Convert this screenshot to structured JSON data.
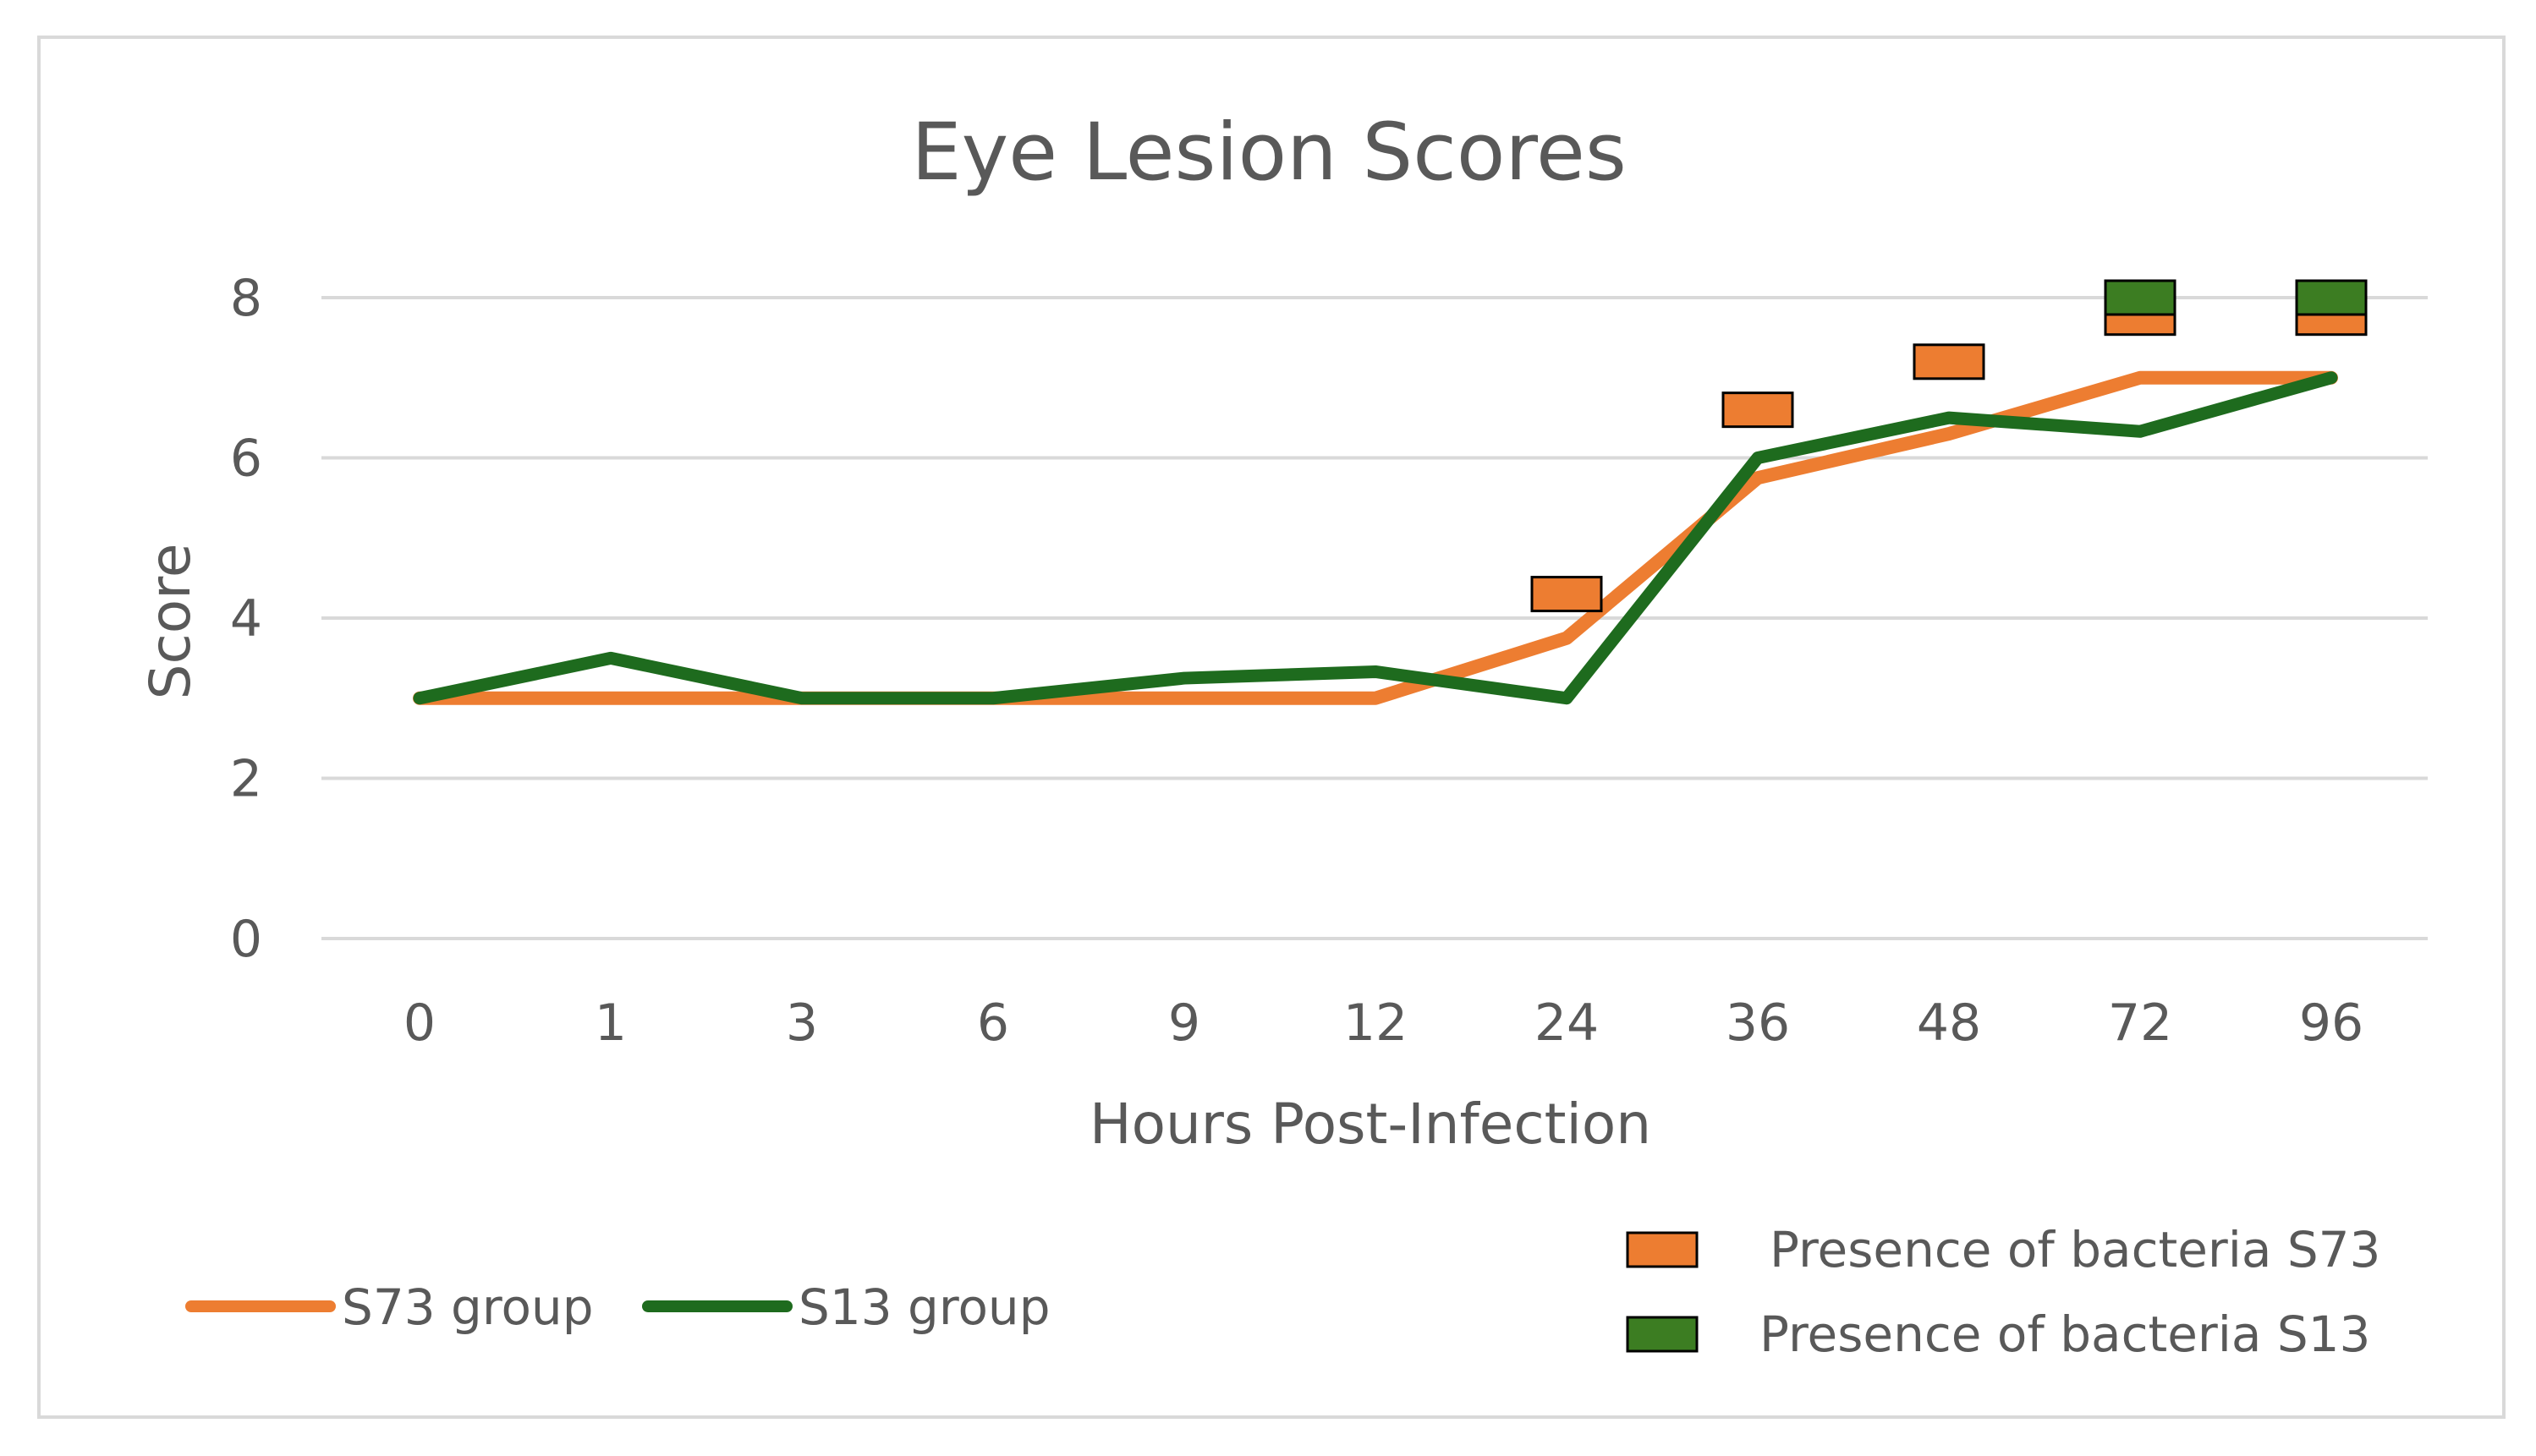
{
  "chart_data": {
    "type": "line",
    "title": "Eye Lesion Scores",
    "xlabel": "Hours Post-Infection",
    "ylabel": "Score",
    "categories": [
      "0",
      "1",
      "3",
      "6",
      "9",
      "12",
      "24",
      "36",
      "48",
      "72",
      "96"
    ],
    "ylim": [
      0,
      8
    ],
    "yticks": [
      0,
      2,
      4,
      6,
      8
    ],
    "grid": true,
    "series": [
      {
        "name": "S73 group",
        "color": "#ED7D31",
        "values": [
          3,
          3,
          3,
          3,
          3,
          3,
          3.75,
          5.75,
          6.3,
          7,
          7
        ]
      },
      {
        "name": "S13 group",
        "color": "#1E6B1E",
        "values": [
          3,
          3.5,
          3,
          3,
          3.25,
          3.33,
          3,
          6,
          6.5,
          6.33,
          7
        ]
      }
    ],
    "markers": [
      {
        "name": "Presence of bacteria S73",
        "color": "#ED7D31",
        "points": [
          {
            "x": "24",
            "y": 4.3
          },
          {
            "x": "36",
            "y": 6.6
          },
          {
            "x": "48",
            "y": 7.2
          },
          {
            "x": "72",
            "y": 7.75
          },
          {
            "x": "96",
            "y": 7.75
          }
        ]
      },
      {
        "name": "Presence of bacteria S13",
        "color": "#3C7D22",
        "points": [
          {
            "x": "72",
            "y": 8.0
          },
          {
            "x": "96",
            "y": 8.0
          }
        ]
      }
    ],
    "legend": {
      "lines_position": "bottom-left",
      "markers_position": "bottom-right",
      "lines": [
        "S73 group",
        "S13 group"
      ],
      "markers": [
        "Presence of bacteria S73",
        "Presence of bacteria S13"
      ]
    }
  }
}
